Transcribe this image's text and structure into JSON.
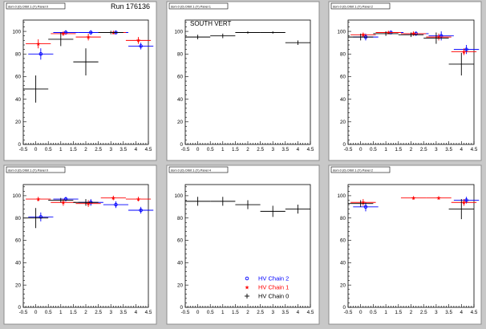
{
  "page": {
    "run_label": "Run 176136",
    "panel_titles": [
      "dom 0 (0) Orbit 1 (Y) Panel 0",
      "dom 0 (0) Orbit 1 (Y) Panel 1",
      "dom 0 (0) Orbit 1 (Y) Panel 2",
      "dom 0 (0) Orbit 1 (Y) Panel 0",
      "dom 0 (0) Orbit 1 (Y) Panel 4",
      "dom 0 (0) Orbit 1 (Y) Panel 2"
    ],
    "annotation": "SOUTH VERT",
    "legend": [
      "HV Chain 2",
      "HV Chain 1",
      "HV Chain 0"
    ]
  },
  "chart_data": {
    "type": "scatter",
    "xlim": [
      -0.5,
      4.5
    ],
    "ylim": [
      0,
      110
    ],
    "x_ticks": [
      "-0.5",
      "0",
      "0.5",
      "1",
      "1.5",
      "2",
      "2.5",
      "3",
      "3.5",
      "4",
      "4.5"
    ],
    "y_ticks": [
      "0",
      "20",
      "40",
      "60",
      "80",
      "100"
    ],
    "colors": {
      "chain2": "#0000ff",
      "chain1": "#ff0000",
      "chain0": "#000000"
    },
    "legend_placement": "bottom-right of panel 5",
    "panels": [
      {
        "series": [
          {
            "name": "HV Chain 2",
            "points": [
              [
                0,
                80,
                5
              ],
              [
                1,
                99,
                2
              ],
              [
                2,
                99,
                2
              ],
              [
                3,
                99,
                1.5
              ],
              [
                4,
                87,
                3
              ]
            ]
          },
          {
            "name": "HV Chain 1",
            "points": [
              [
                0,
                89,
                4
              ],
              [
                1,
                98,
                2
              ],
              [
                2,
                95,
                3
              ],
              [
                3,
                99,
                1.5
              ],
              [
                4,
                92,
                3
              ]
            ]
          },
          {
            "name": "HV Chain 0",
            "points": [
              [
                0,
                49,
                12
              ],
              [
                1,
                93,
                6
              ],
              [
                2,
                73,
                12
              ],
              [
                3,
                99,
                1.5
              ]
            ]
          }
        ]
      },
      {
        "series": [
          {
            "name": "HV Chain 0",
            "points": [
              [
                0,
                95,
                2
              ],
              [
                1,
                96,
                2
              ],
              [
                2,
                99,
                1
              ],
              [
                3,
                99,
                1
              ],
              [
                4,
                90,
                2
              ]
            ]
          }
        ]
      },
      {
        "series": [
          {
            "name": "HV Chain 2",
            "points": [
              [
                0,
                95,
                3
              ],
              [
                1,
                99,
                1.5
              ],
              [
                2,
                98,
                2
              ],
              [
                3,
                96,
                4
              ],
              [
                4,
                84,
                4
              ]
            ]
          },
          {
            "name": "HV Chain 1",
            "points": [
              [
                0,
                97,
                2
              ],
              [
                1,
                99,
                1.5
              ],
              [
                2,
                98,
                2
              ],
              [
                3,
                95,
                3
              ],
              [
                4,
                82,
                3
              ]
            ]
          },
          {
            "name": "HV Chain 0",
            "points": [
              [
                0,
                95,
                3
              ],
              [
                1,
                98,
                2
              ],
              [
                2,
                97,
                2
              ],
              [
                3,
                94,
                5
              ],
              [
                4,
                71,
                10
              ]
            ]
          }
        ]
      },
      {
        "series": [
          {
            "name": "HV Chain 2",
            "points": [
              [
                0,
                81,
                4
              ],
              [
                1,
                97,
                2
              ],
              [
                2,
                94,
                3
              ],
              [
                3,
                92,
                3
              ],
              [
                4,
                87,
                3
              ]
            ]
          },
          {
            "name": "HV Chain 1",
            "points": [
              [
                0,
                97,
                2
              ],
              [
                1,
                94,
                3
              ],
              [
                2,
                93,
                3
              ],
              [
                3,
                98,
                2
              ],
              [
                4,
                97,
                2
              ]
            ]
          },
          {
            "name": "HV Chain 0",
            "points": [
              [
                0,
                80,
                9
              ],
              [
                1,
                96,
                2
              ],
              [
                2,
                94,
                3
              ]
            ]
          }
        ]
      },
      {
        "series": [
          {
            "name": "HV Chain 0",
            "points": [
              [
                0,
                95,
                4
              ],
              [
                1,
                95,
                4
              ],
              [
                2,
                92,
                4
              ],
              [
                3,
                86,
                5
              ],
              [
                4,
                88,
                4
              ]
            ]
          }
        ]
      },
      {
        "series": [
          {
            "name": "HV Chain 2",
            "points": [
              [
                0,
                90,
                4
              ],
              [
                4,
                96,
                3
              ]
            ]
          },
          {
            "name": "HV Chain 1",
            "points": [
              [
                0,
                94,
                3
              ],
              [
                2,
                98,
                1.5
              ],
              [
                3,
                98,
                1.5
              ],
              [
                4,
                94,
                3
              ]
            ]
          },
          {
            "name": "HV Chain 0",
            "points": [
              [
                0,
                93,
                3
              ],
              [
                4,
                88,
                9
              ]
            ]
          }
        ]
      }
    ]
  }
}
